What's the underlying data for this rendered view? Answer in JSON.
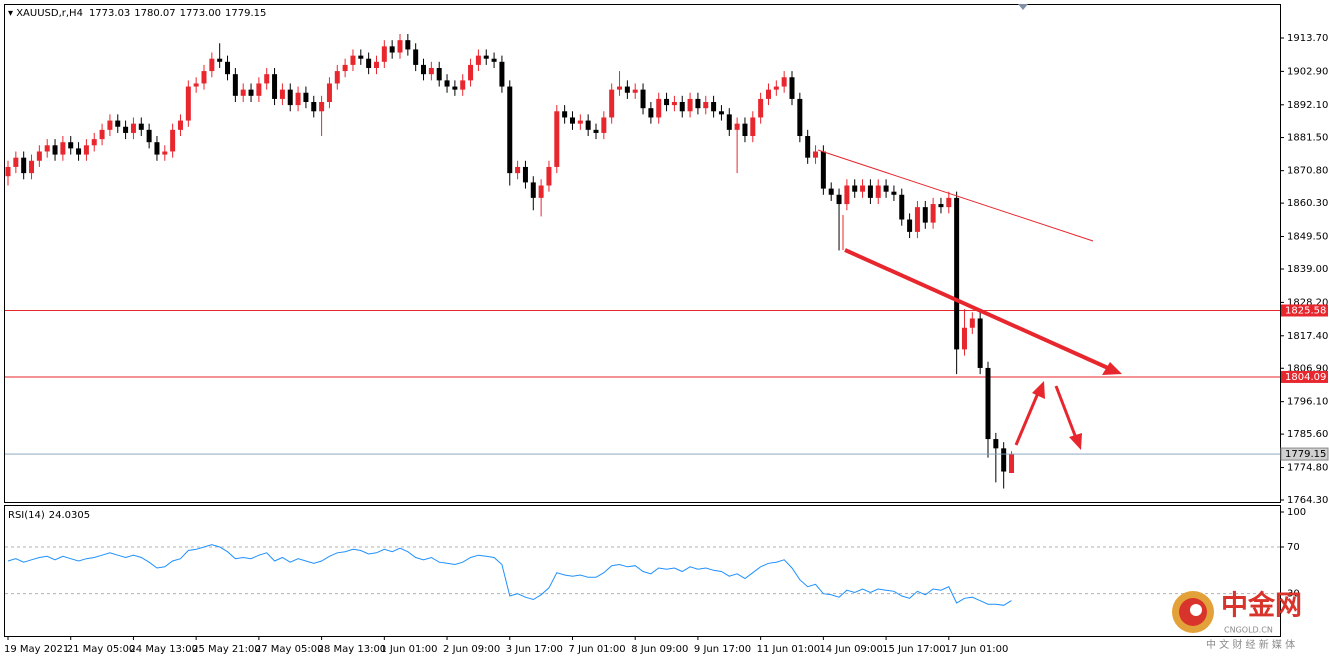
{
  "chart_data": {
    "type": "candlestick",
    "symbol": "XAUUSD,r,H4",
    "last_labels": [
      "1773.03",
      "1780.07",
      "1773.00",
      "1779.15"
    ],
    "categories": [
      "19 May 2021",
      null,
      null,
      null,
      null,
      null,
      null,
      null,
      "21 May 05:00",
      null,
      null,
      null,
      null,
      null,
      null,
      null,
      "24 May 13:00",
      null,
      null,
      null,
      null,
      null,
      null,
      null,
      "25 May 21:00",
      null,
      null,
      null,
      null,
      null,
      null,
      null,
      "27 May 05:00",
      null,
      null,
      null,
      null,
      null,
      null,
      null,
      "28 May 13:00",
      null,
      null,
      null,
      null,
      null,
      null,
      null,
      "1 Jun 01:00",
      null,
      null,
      null,
      null,
      null,
      null,
      null,
      "2 Jun 09:00",
      null,
      null,
      null,
      null,
      null,
      null,
      null,
      "3 Jun 17:00",
      null,
      null,
      null,
      null,
      null,
      null,
      null,
      "7 Jun 01:00",
      null,
      null,
      null,
      null,
      null,
      null,
      null,
      "8 Jun 09:00",
      null,
      null,
      null,
      null,
      null,
      null,
      null,
      "9 Jun 17:00",
      null,
      null,
      null,
      null,
      null,
      null,
      null,
      "11 Jun 01:00",
      null,
      null,
      null,
      null,
      null,
      null,
      null,
      "14 Jun 09:00",
      null,
      null,
      null,
      null,
      null,
      null,
      null,
      "15 Jun 17:00",
      null,
      null,
      null,
      null,
      null,
      null,
      null,
      "17 Jun 01:00",
      null,
      null,
      null,
      null,
      null,
      null,
      null,
      null
    ],
    "open": [
      1869,
      1872,
      1875,
      1870,
      1874,
      1877,
      1879,
      1876,
      1880,
      1878,
      1876,
      1879,
      1881,
      1884,
      1887,
      1885,
      1883,
      1886,
      1884,
      1880,
      1876,
      1877,
      1884,
      1887,
      1898,
      1899,
      1903,
      1907,
      1906,
      1902,
      1895,
      1897,
      1895,
      1899,
      1902,
      1894,
      1897,
      1892,
      1896,
      1893,
      1890,
      1893,
      1899,
      1903,
      1905,
      1908,
      1907,
      1904,
      1906,
      1911,
      1909,
      1913,
      1910,
      1905,
      1902,
      1904,
      1900,
      1898,
      1897,
      1900,
      1905,
      1908,
      1907,
      1906,
      1898,
      1870,
      1872,
      1867,
      1862,
      1866,
      1872,
      1890,
      1888,
      1886,
      1887,
      1884,
      1883,
      1888,
      1897,
      1898,
      1896,
      1897,
      1891,
      1888,
      1894,
      1892,
      1893,
      1890,
      1894,
      1891,
      1893,
      1890,
      1889,
      1884,
      1886,
      1882,
      1888,
      1894,
      1897,
      1898,
      1901,
      1894,
      1882,
      1875,
      1877,
      1865,
      1863,
      1860,
      1866,
      1864,
      1866,
      1862,
      1866,
      1864,
      1863,
      1855,
      1851,
      1859,
      1854,
      1860,
      1859,
      1862,
      1813,
      1820,
      1823,
      1807,
      1784,
      1781,
      1773.03
    ],
    "high": [
      1874,
      1877,
      1877,
      1876,
      1879,
      1881,
      1881,
      1882,
      1882,
      1880,
      1881,
      1883,
      1886,
      1889,
      1889,
      1887,
      1888,
      1888,
      1886,
      1882,
      1879,
      1886,
      1889,
      1900,
      1901,
      1905,
      1909,
      1912,
      1908,
      1904,
      1899,
      1899,
      1901,
      1904,
      1904,
      1899,
      1899,
      1898,
      1898,
      1895,
      1895,
      1901,
      1905,
      1907,
      1910,
      1910,
      1909,
      1908,
      1913,
      1913,
      1915,
      1915,
      1912,
      1907,
      1906,
      1906,
      1902,
      1900,
      1902,
      1907,
      1910,
      1910,
      1909,
      1908,
      1900,
      1874,
      1874,
      1869,
      1868,
      1874,
      1892,
      1892,
      1890,
      1889,
      1889,
      1886,
      1890,
      1899,
      1903,
      1900,
      1899,
      1899,
      1893,
      1896,
      1896,
      1895,
      1895,
      1896,
      1896,
      1895,
      1895,
      1892,
      1891,
      1888,
      1888,
      1890,
      1896,
      1899,
      1900,
      1903,
      1903,
      1896,
      1884,
      1879,
      1879,
      1867,
      1865,
      1868,
      1868,
      1868,
      1868,
      1868,
      1868,
      1866,
      1865,
      1857,
      1861,
      1861,
      1862,
      1862,
      1864,
      1864,
      1826,
      1825,
      1825,
      1809,
      1786,
      1783,
      1780.07
    ],
    "low": [
      1866,
      1870,
      1868,
      1868,
      1872,
      1875,
      1874,
      1874,
      1876,
      1874,
      1874,
      1877,
      1879,
      1882,
      1883,
      1881,
      1881,
      1882,
      1878,
      1874,
      1874,
      1875,
      1882,
      1885,
      1896,
      1897,
      1901,
      1904,
      1900,
      1893,
      1893,
      1893,
      1893,
      1897,
      1892,
      1892,
      1890,
      1890,
      1891,
      1888,
      1882,
      1891,
      1897,
      1901,
      1903,
      1905,
      1902,
      1902,
      1904,
      1907,
      1907,
      1908,
      1903,
      1900,
      1900,
      1898,
      1896,
      1895,
      1895,
      1898,
      1903,
      1905,
      1904,
      1896,
      1866,
      1868,
      1865,
      1858,
      1856,
      1864,
      1870,
      1886,
      1884,
      1884,
      1882,
      1881,
      1881,
      1886,
      1895,
      1894,
      1894,
      1889,
      1886,
      1886,
      1890,
      1890,
      1888,
      1888,
      1889,
      1889,
      1888,
      1887,
      1882,
      1870,
      1880,
      1880,
      1886,
      1892,
      1895,
      1896,
      1892,
      1880,
      1873,
      1873,
      1863,
      1861,
      1845,
      1858,
      1862,
      1862,
      1860,
      1860,
      1862,
      1861,
      1853,
      1849,
      1849,
      1852,
      1852,
      1857,
      1857,
      1805,
      1811,
      1818,
      1805,
      1778,
      1770,
      1768,
      1773.0
    ],
    "close": [
      1872,
      1875,
      1870,
      1874,
      1877,
      1879,
      1876,
      1880,
      1878,
      1876,
      1879,
      1881,
      1884,
      1887,
      1885,
      1883,
      1886,
      1884,
      1880,
      1876,
      1877,
      1884,
      1887,
      1898,
      1899,
      1903,
      1907,
      1906,
      1902,
      1895,
      1897,
      1895,
      1899,
      1902,
      1894,
      1897,
      1892,
      1896,
      1893,
      1890,
      1893,
      1899,
      1903,
      1905,
      1908,
      1907,
      1904,
      1906,
      1911,
      1909,
      1913,
      1910,
      1905,
      1902,
      1904,
      1900,
      1898,
      1897,
      1900,
      1905,
      1908,
      1907,
      1906,
      1898,
      1870,
      1872,
      1867,
      1862,
      1866,
      1872,
      1890,
      1888,
      1886,
      1887,
      1884,
      1883,
      1888,
      1897,
      1898,
      1896,
      1897,
      1891,
      1888,
      1894,
      1892,
      1893,
      1890,
      1894,
      1891,
      1893,
      1890,
      1889,
      1884,
      1886,
      1882,
      1888,
      1894,
      1897,
      1898,
      1901,
      1894,
      1882,
      1875,
      1877,
      1865,
      1863,
      1860,
      1866,
      1864,
      1866,
      1862,
      1866,
      1864,
      1863,
      1855,
      1851,
      1859,
      1854,
      1860,
      1859,
      1862,
      1813,
      1820,
      1823,
      1807,
      1784,
      1781,
      1773.5,
      1779.15
    ],
    "up_color": "#e8262e",
    "down_color": "#000000",
    "ylim": [
      1763.65,
      1924.37
    ],
    "yticks": [
      {
        "value": 1913.7,
        "label": "1913.70"
      },
      {
        "value": 1902.9,
        "label": "1902.90"
      },
      {
        "value": 1892.1,
        "label": "1892.10"
      },
      {
        "value": 1881.5,
        "label": "1881.50"
      },
      {
        "value": 1870.8,
        "label": "1870.80"
      },
      {
        "value": 1860.3,
        "label": "1860.30"
      },
      {
        "value": 1849.5,
        "label": "1849.50"
      },
      {
        "value": 1839,
        "label": "1839.00"
      },
      {
        "value": 1828.2,
        "label": "1828.20"
      },
      {
        "value": 1817.4,
        "label": "1817.40"
      },
      {
        "value": 1806.9,
        "label": "1806.90"
      },
      {
        "value": 1796.1,
        "label": "1796.10"
      },
      {
        "value": 1785.6,
        "label": "1785.60"
      },
      {
        "value": 1774.8,
        "label": "1774.80"
      },
      {
        "value": 1764.3,
        "label": "1764.30"
      }
    ],
    "levels": [
      {
        "value": 1825.58,
        "color": "#e8262e"
      },
      {
        "value": 1804.09,
        "color": "#e8262e"
      }
    ],
    "last_price_color": "#7f9db9"
  },
  "indicator": {
    "type": "line",
    "name": "RSI(14)",
    "color": "#1e90ff",
    "values": [
      58,
      60,
      57,
      59,
      61,
      62,
      59,
      62,
      60,
      58,
      60,
      61,
      63,
      65,
      63,
      61,
      63,
      61,
      57,
      52,
      53,
      58,
      60,
      67,
      68,
      70,
      72,
      70,
      66,
      60,
      61,
      60,
      63,
      65,
      58,
      61,
      57,
      60,
      58,
      56,
      58,
      62,
      65,
      66,
      68,
      67,
      64,
      65,
      68,
      66,
      69,
      66,
      61,
      59,
      61,
      57,
      56,
      55,
      57,
      61,
      63,
      62,
      61,
      55,
      28,
      30,
      27,
      25,
      29,
      35,
      48,
      46,
      45,
      46,
      44,
      44,
      48,
      54,
      55,
      53,
      54,
      49,
      47,
      52,
      51,
      52,
      49,
      53,
      51,
      52,
      50,
      49,
      45,
      47,
      43,
      48,
      53,
      56,
      57,
      59,
      52,
      42,
      36,
      38,
      30,
      29,
      27,
      33,
      31,
      34,
      31,
      34,
      33,
      32,
      28,
      26,
      32,
      29,
      34,
      33,
      36,
      22,
      26,
      27,
      24,
      21,
      21,
      20,
      24.0305
    ],
    "ylim": [
      -6.3,
      106
    ],
    "yticks": [
      100,
      70,
      30
    ],
    "levels": [
      70,
      30
    ]
  },
  "watermark": {
    "title": "中金网",
    "site": "CNGOLD.CN",
    "slogan": "中 文 财 经 新 媒 体"
  }
}
